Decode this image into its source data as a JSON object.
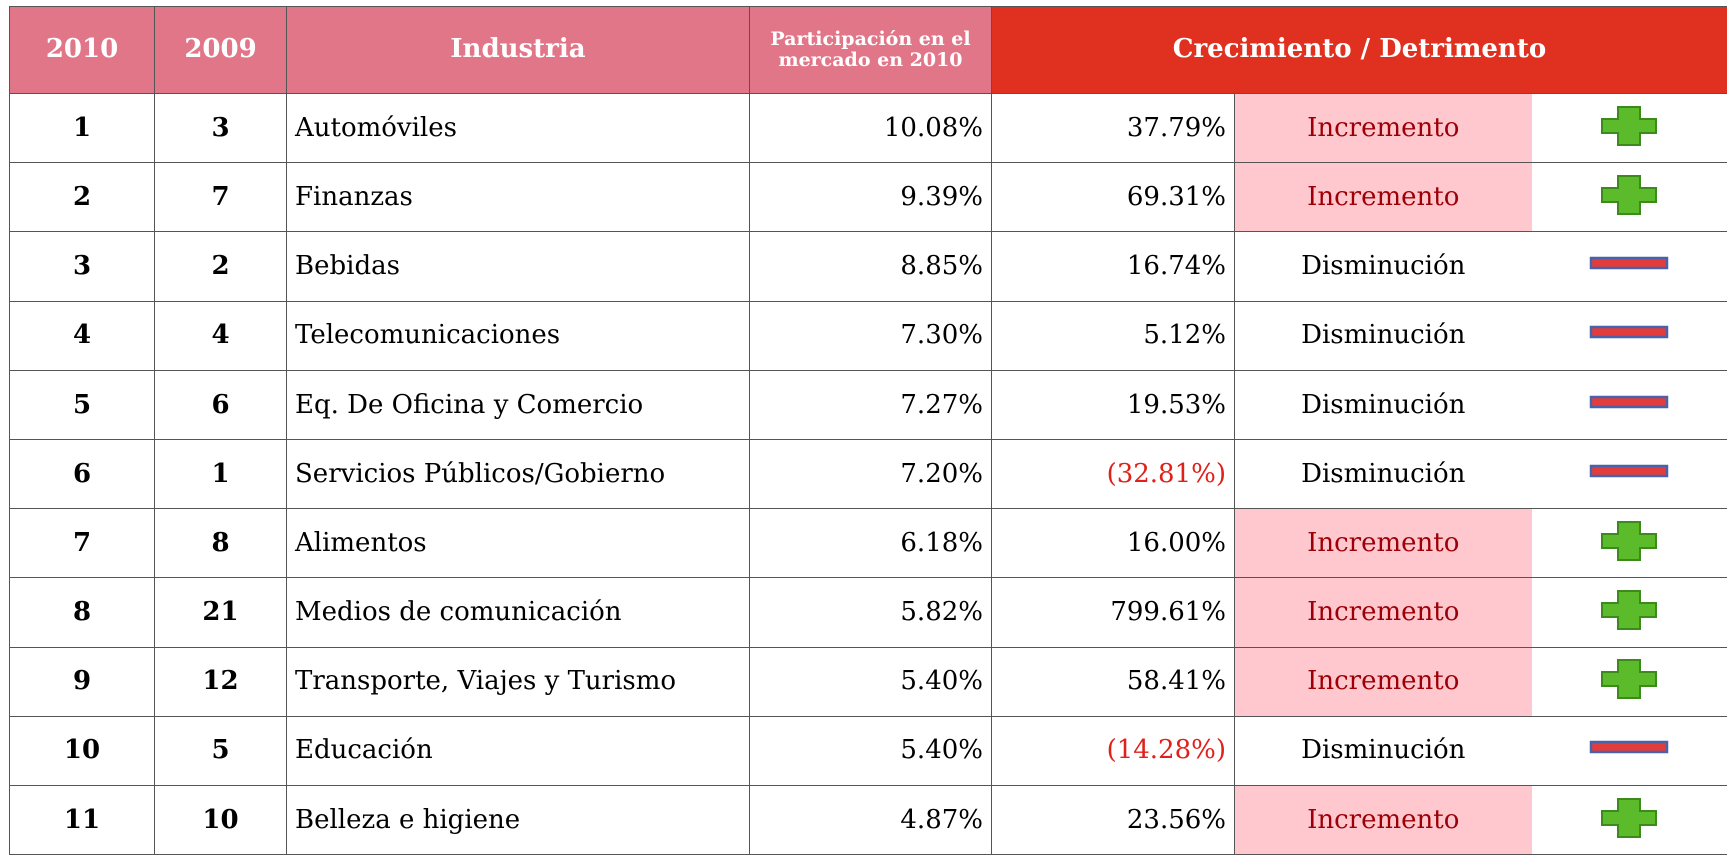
{
  "table": {
    "header": [
      "2010",
      "2009",
      "Industria",
      "Participación en el mercado en 2010",
      "Crecimiento / Detrimento"
    ],
    "rows": [
      {
        "rank_2010": "1",
        "rank_2009": "3",
        "industry": "Automóviles",
        "share": "10.08%",
        "growth": "37.79%",
        "status": "Incremento",
        "icon": "plus"
      },
      {
        "rank_2010": "2",
        "rank_2009": "7",
        "industry": "Finanzas",
        "share": "9.39%",
        "growth": "69.31%",
        "status": "Incremento",
        "icon": "plus"
      },
      {
        "rank_2010": "3",
        "rank_2009": "2",
        "industry": "Bebidas",
        "share": "8.85%",
        "growth": "16.74%",
        "status": "Disminución",
        "icon": "minus"
      },
      {
        "rank_2010": "4",
        "rank_2009": "4",
        "industry": "Telecomunicaciones",
        "share": "7.30%",
        "growth": "5.12%",
        "status": "Disminución",
        "icon": "minus"
      },
      {
        "rank_2010": "5",
        "rank_2009": "6",
        "industry": "Eq. De Oficina y Comercio",
        "share": "7.27%",
        "growth": "19.53%",
        "status": "Disminución",
        "icon": "minus"
      },
      {
        "rank_2010": "6",
        "rank_2009": "1",
        "industry": "Servicios Públicos/Gobierno",
        "share": "7.20%",
        "growth": "(32.81%)",
        "status": "Disminución",
        "icon": "minus"
      },
      {
        "rank_2010": "7",
        "rank_2009": "8",
        "industry": "Alimentos",
        "share": "6.18%",
        "growth": "16.00%",
        "status": "Incremento",
        "icon": "plus"
      },
      {
        "rank_2010": "8",
        "rank_2009": "21",
        "industry": "Medios de comunicación",
        "share": "5.82%",
        "growth": "799.61%",
        "status": "Incremento",
        "icon": "plus"
      },
      {
        "rank_2010": "9",
        "rank_2009": "12",
        "industry": "Transporte, Viajes y Turismo",
        "share": "5.40%",
        "growth": "58.41%",
        "status": "Incremento",
        "icon": "plus"
      },
      {
        "rank_2010": "10",
        "rank_2009": "5",
        "industry": "Educación",
        "share": "5.40%",
        "growth": "(14.28%)",
        "status": "Disminución",
        "icon": "minus"
      },
      {
        "rank_2010": "11",
        "rank_2009": "10",
        "industry": "Belleza e higiene",
        "share": "4.87%",
        "growth": "23.56%",
        "status": "Incremento",
        "icon": "plus"
      }
    ]
  }
}
